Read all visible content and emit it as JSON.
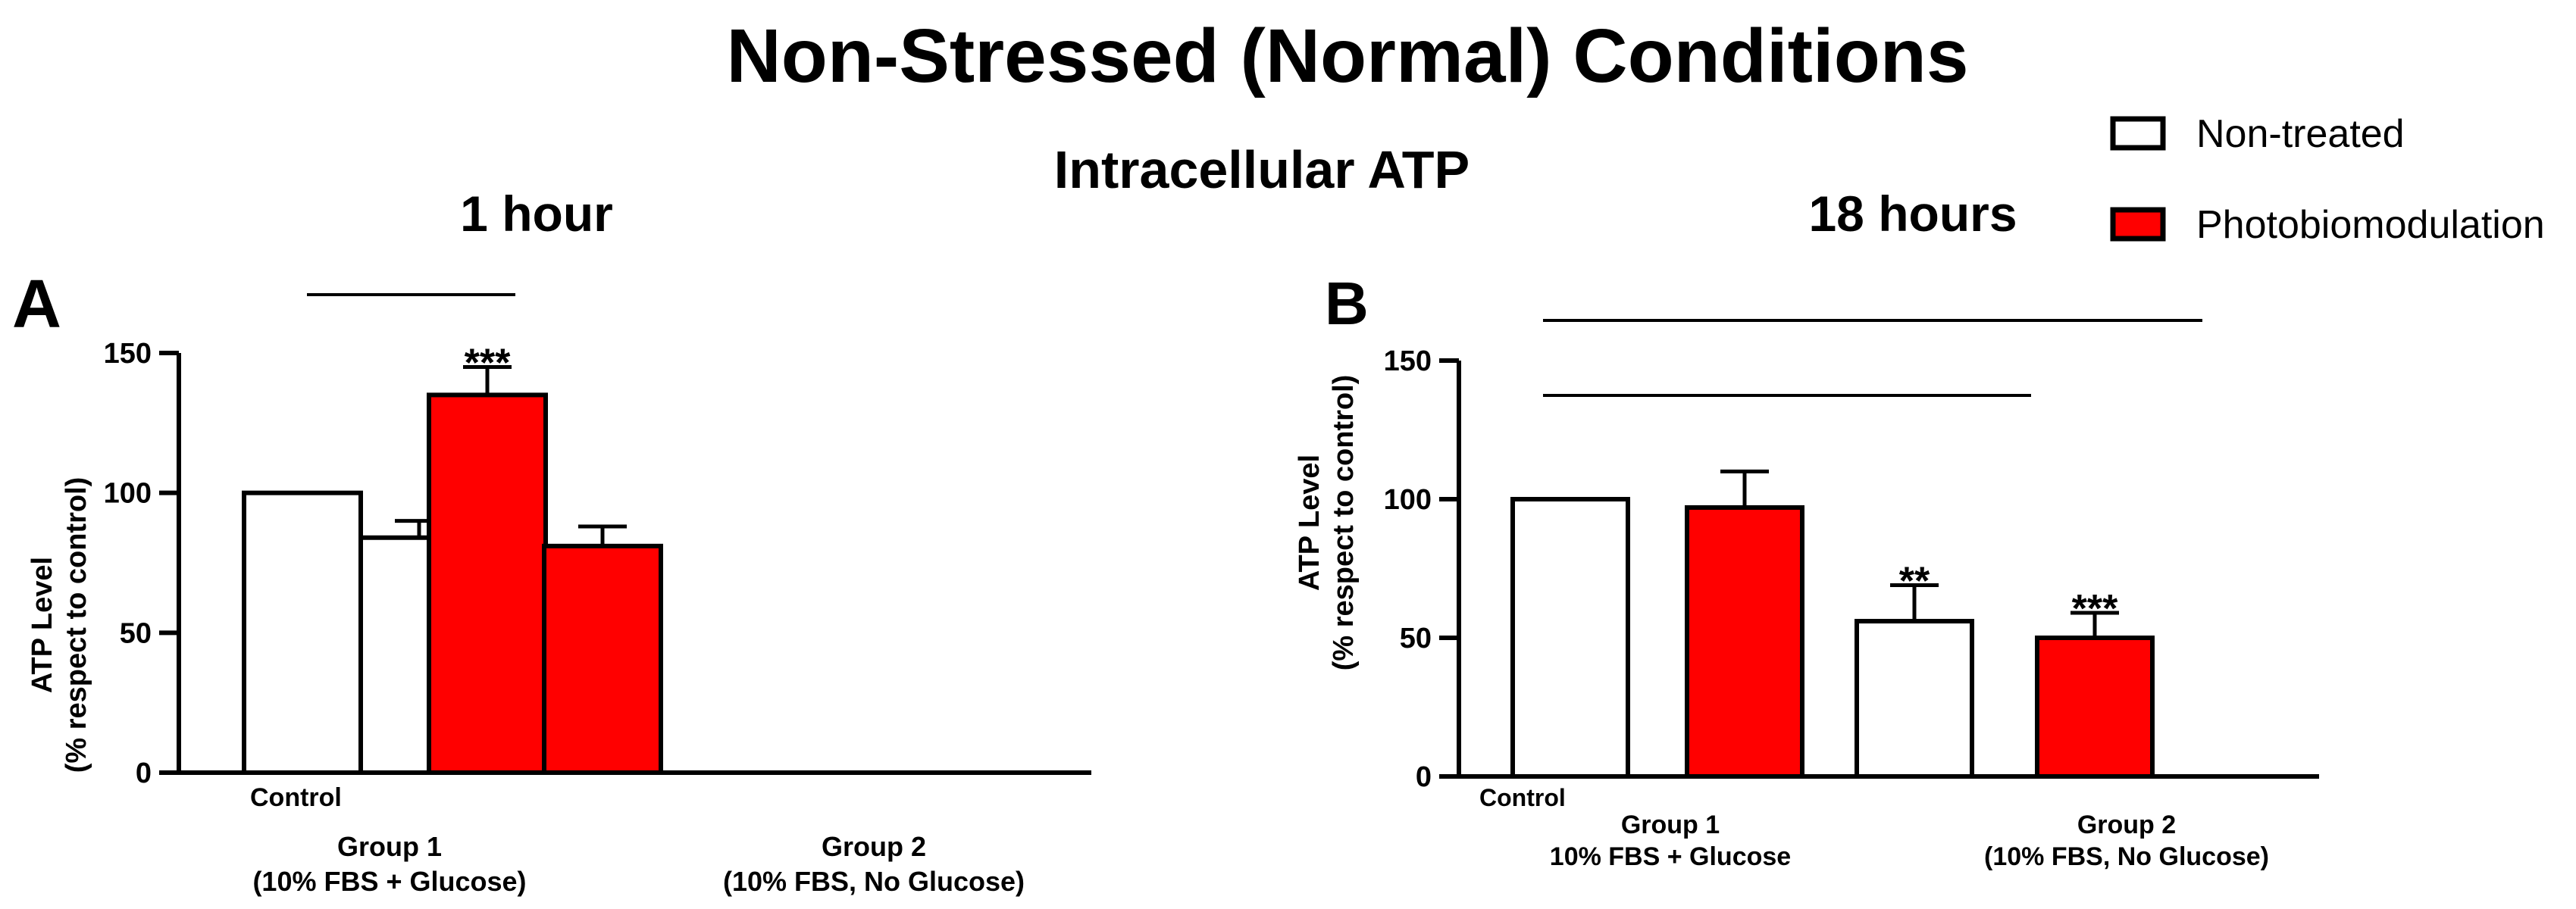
{
  "main_title": "Non-Stressed (Normal) Conditions",
  "subtitle": "Intracellular ATP",
  "legend": {
    "items": [
      {
        "label": "Non-treated",
        "color": "#ffffff"
      },
      {
        "label": "Photobiomodulation",
        "color": "#ff0000"
      }
    ]
  },
  "chart_data": [
    {
      "type": "bar",
      "panel_label": "A",
      "title": "1 hour",
      "ylabel_line1": "ATP Level",
      "ylabel_line2": "(% respect to control)",
      "ylim": [
        0,
        150
      ],
      "yticks": [
        0,
        50,
        100,
        150
      ],
      "ytick_labels": [
        "0",
        "50",
        "100",
        "150"
      ],
      "control_label": "Control",
      "groups": [
        {
          "label_line1": "Group 1",
          "label_line2": "(10% FBS + Glucose)"
        },
        {
          "label_line1": "Group 2",
          "label_line2": "(10% FBS, No Glucose)"
        }
      ],
      "series": [
        {
          "name": "Non-treated",
          "color": "#ffffff",
          "values": [
            100,
            84
          ],
          "errors": [
            0,
            6
          ],
          "annotations": [
            "",
            ""
          ]
        },
        {
          "name": "Photobiomodulation",
          "color": "#ff0000",
          "values": [
            135,
            81
          ],
          "errors": [
            10,
            7
          ],
          "annotations": [
            "***",
            ""
          ]
        }
      ]
    },
    {
      "type": "bar",
      "panel_label": "B",
      "title": "18 hours",
      "ylabel_line1": "ATP Level",
      "ylabel_line2": "(% respect to control)",
      "ylim": [
        0,
        150
      ],
      "yticks": [
        0,
        50,
        100,
        150
      ],
      "ytick_labels": [
        "0",
        "50",
        "100",
        "150"
      ],
      "control_label": "Control",
      "groups": [
        {
          "label_line1": "Group 1",
          "label_line2": "10% FBS + Glucose"
        },
        {
          "label_line1": "Group 2",
          "label_line2": "(10% FBS, No Glucose)"
        }
      ],
      "series": [
        {
          "name": "Non-treated",
          "color": "#ffffff",
          "values": [
            100,
            56
          ],
          "errors": [
            0,
            13
          ],
          "annotations": [
            "",
            "**"
          ]
        },
        {
          "name": "Photobiomodulation",
          "color": "#ff0000",
          "values": [
            97,
            50
          ],
          "errors": [
            13,
            9
          ],
          "annotations": [
            "",
            "***"
          ]
        }
      ]
    }
  ]
}
